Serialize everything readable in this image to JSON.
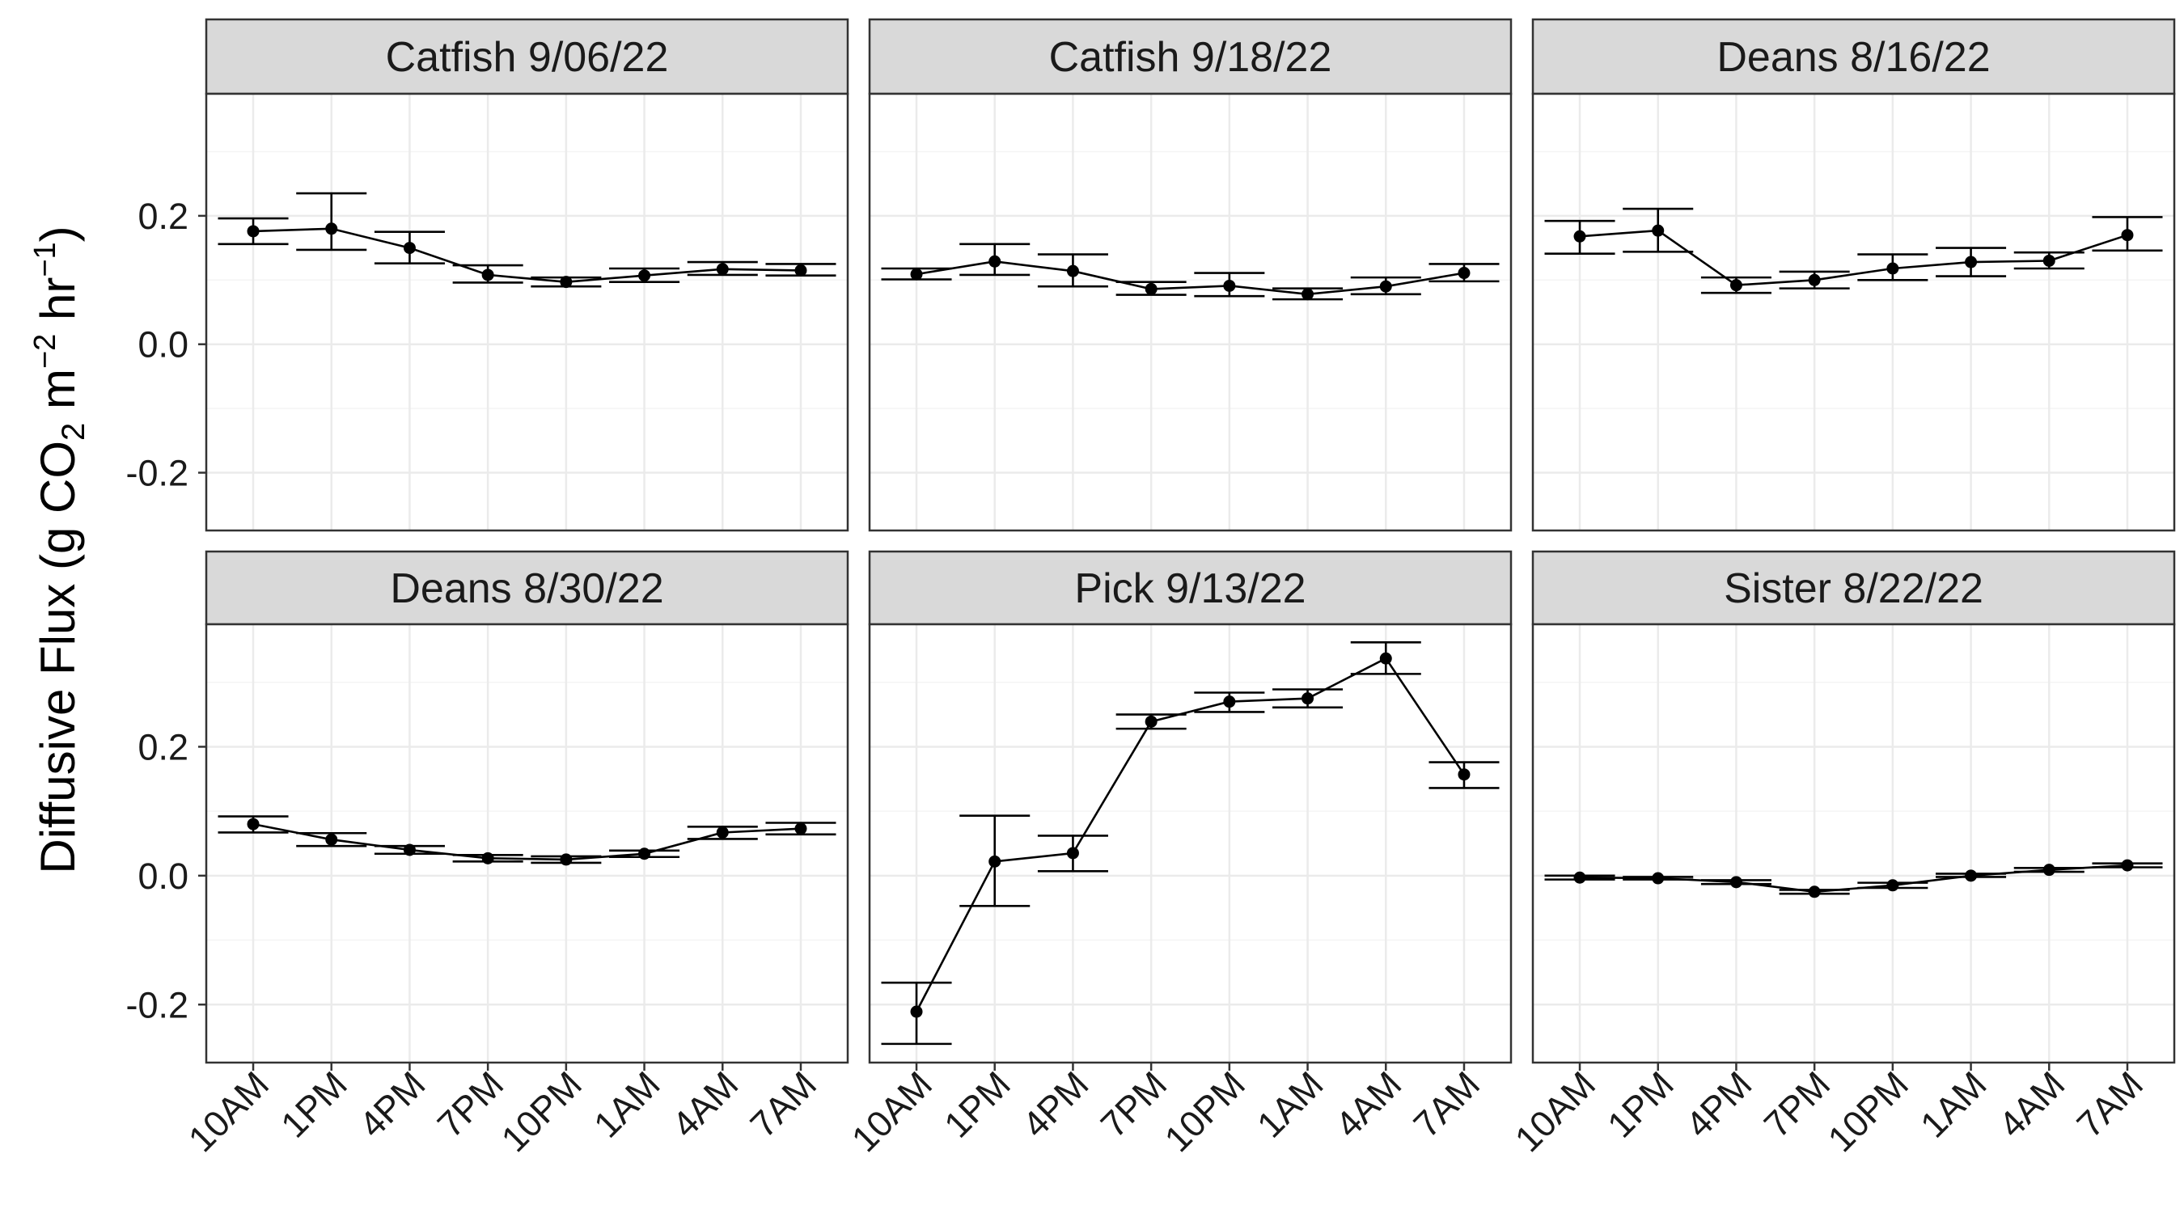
{
  "chart_data": {
    "type": "line",
    "ylabel_parts": [
      {
        "text": "Diffusive Flux (g CO",
        "kind": "normal"
      },
      {
        "text": "2",
        "kind": "sub"
      },
      {
        "text": " m",
        "kind": "normal"
      },
      {
        "text": "−2",
        "kind": "sup"
      },
      {
        "text": " hr",
        "kind": "normal"
      },
      {
        "text": "−1",
        "kind": "sup"
      },
      {
        "text": ")",
        "kind": "normal"
      }
    ],
    "x_categories": [
      "10AM",
      "1PM",
      "4PM",
      "7PM",
      "10PM",
      "1AM",
      "4AM",
      "7AM"
    ],
    "y_ticks": [
      -0.2,
      0.0,
      0.2
    ],
    "y_tick_labels": [
      "-0.2",
      "0.0",
      "0.2"
    ],
    "ylim": [
      -0.29,
      0.39
    ],
    "grid": true,
    "colors": {
      "strip_fill": "#d9d9d9",
      "panel_border": "#333333",
      "grid_major": "#ebebeb",
      "grid_minor": "#f4f4f4",
      "line": "#000000"
    },
    "panels": [
      {
        "title": "Catfish 9/06/22",
        "values": [
          0.176,
          0.18,
          0.15,
          0.108,
          0.097,
          0.107,
          0.117,
          0.115
        ],
        "lower": [
          0.156,
          0.147,
          0.126,
          0.096,
          0.09,
          0.097,
          0.108,
          0.107
        ],
        "upper": [
          0.196,
          0.235,
          0.175,
          0.123,
          0.104,
          0.118,
          0.128,
          0.125
        ]
      },
      {
        "title": "Catfish 9/18/22",
        "values": [
          0.109,
          0.129,
          0.114,
          0.086,
          0.091,
          0.078,
          0.09,
          0.111
        ],
        "lower": [
          0.101,
          0.108,
          0.09,
          0.077,
          0.075,
          0.07,
          0.078,
          0.098
        ],
        "upper": [
          0.118,
          0.156,
          0.14,
          0.097,
          0.111,
          0.087,
          0.104,
          0.125
        ]
      },
      {
        "title": "Deans 8/16/22",
        "values": [
          0.168,
          0.177,
          0.092,
          0.1,
          0.118,
          0.128,
          0.13,
          0.17
        ],
        "lower": [
          0.141,
          0.144,
          0.08,
          0.087,
          0.1,
          0.106,
          0.118,
          0.146
        ],
        "upper": [
          0.192,
          0.211,
          0.104,
          0.113,
          0.14,
          0.15,
          0.143,
          0.198
        ]
      },
      {
        "title": "Deans 8/30/22",
        "values": [
          0.08,
          0.056,
          0.04,
          0.027,
          0.025,
          0.034,
          0.067,
          0.073
        ],
        "lower": [
          0.067,
          0.046,
          0.034,
          0.022,
          0.02,
          0.029,
          0.057,
          0.064
        ],
        "upper": [
          0.092,
          0.066,
          0.046,
          0.032,
          0.03,
          0.039,
          0.076,
          0.082
        ]
      },
      {
        "title": "Pick 9/13/22",
        "values": [
          -0.211,
          0.022,
          0.035,
          0.239,
          0.27,
          0.275,
          0.337,
          0.157
        ],
        "lower": [
          -0.261,
          -0.047,
          0.007,
          0.228,
          0.254,
          0.261,
          0.313,
          0.136
        ],
        "upper": [
          -0.166,
          0.093,
          0.062,
          0.25,
          0.284,
          0.289,
          0.362,
          0.176
        ]
      },
      {
        "title": "Sister 8/22/22",
        "values": [
          -0.003,
          -0.004,
          -0.01,
          -0.025,
          -0.015,
          0.0,
          0.009,
          0.016
        ],
        "lower": [
          -0.006,
          -0.006,
          -0.013,
          -0.028,
          -0.019,
          -0.002,
          0.006,
          0.013
        ],
        "upper": [
          0.0,
          -0.002,
          -0.007,
          -0.022,
          -0.011,
          0.003,
          0.012,
          0.019
        ]
      }
    ]
  }
}
